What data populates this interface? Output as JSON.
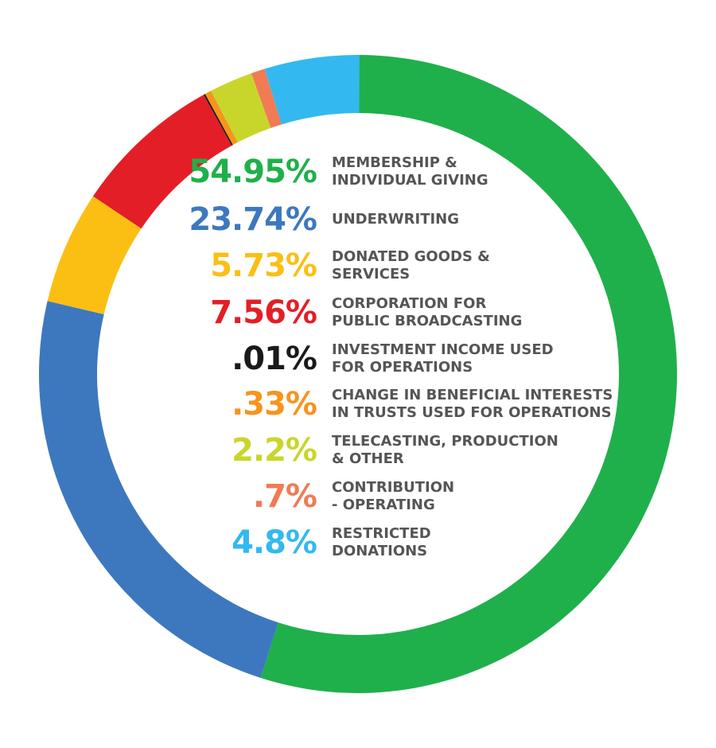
{
  "chart_data": {
    "type": "pie",
    "title": "",
    "slices": [
      {
        "percent_label": "54.95%",
        "value": 54.95,
        "label_lines": [
          "MEMBERSHIP &",
          "INDIVIDUAL GIVING"
        ],
        "color": "#1fb04b"
      },
      {
        "percent_label": "23.74%",
        "value": 23.74,
        "label_lines": [
          "UNDERWRITING"
        ],
        "color": "#3d78be"
      },
      {
        "percent_label": "5.73%",
        "value": 5.73,
        "label_lines": [
          "DONATED GOODS &",
          "SERVICES"
        ],
        "color": "#fbbf14"
      },
      {
        "percent_label": "7.56%",
        "value": 7.56,
        "label_lines": [
          "CORPORATION FOR",
          "PUBLIC BROADCASTING"
        ],
        "color": "#e41e26"
      },
      {
        "percent_label": ".01%",
        "value": 0.01,
        "label_lines": [
          "INVESTMENT INCOME USED",
          "FOR OPERATIONS"
        ],
        "color": "#1a1a1a"
      },
      {
        "percent_label": ".33%",
        "value": 0.33,
        "label_lines": [
          "CHANGE IN BENEFICIAL INTERESTS",
          "IN TRUSTS USED FOR OPERATIONS"
        ],
        "color": "#f7941d"
      },
      {
        "percent_label": "2.2%",
        "value": 2.2,
        "label_lines": [
          "TELECASTING, PRODUCTION",
          "& OTHER"
        ],
        "color": "#c8d62b"
      },
      {
        "percent_label": ".7%",
        "value": 0.7,
        "label_lines": [
          "CONTRIBUTION",
          "- OPERATING"
        ],
        "color": "#f07b55"
      },
      {
        "percent_label": "4.8%",
        "value": 4.8,
        "label_lines": [
          "RESTRICTED",
          "DONATIONS"
        ],
        "color": "#33b9ef"
      }
    ],
    "legend_position": "center",
    "grid": false
  }
}
